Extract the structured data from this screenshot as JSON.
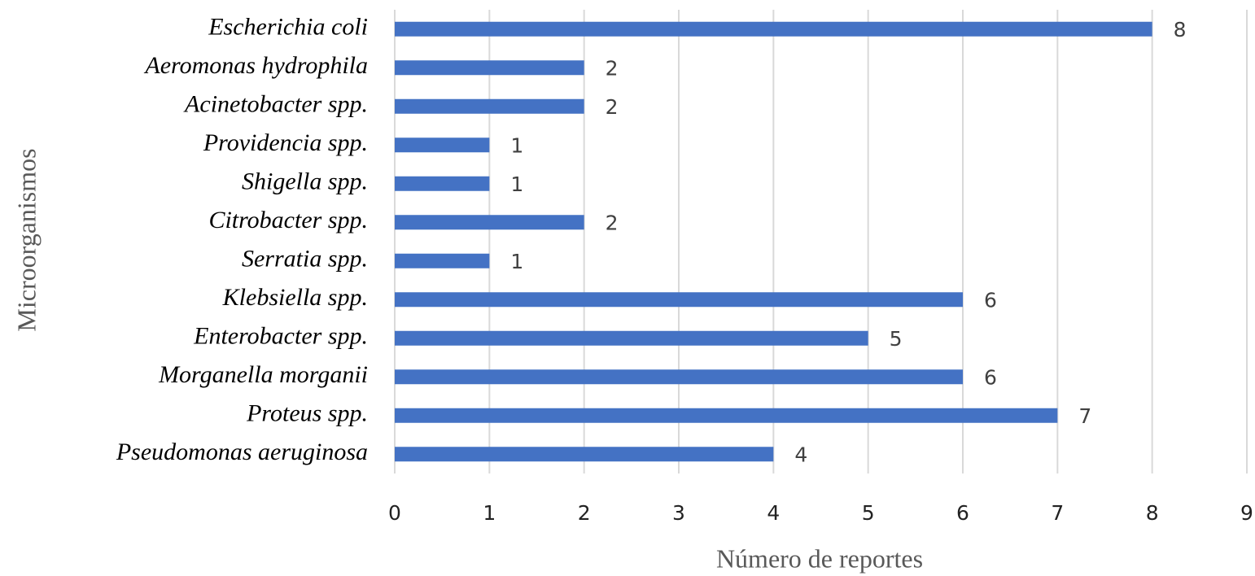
{
  "chart_data": {
    "type": "hbar",
    "xlabel": "Número de reportes",
    "ylabel": "Microorganismos",
    "categories": [
      "Escherichia coli",
      "Aeromonas hydrophila",
      "Acinetobacter spp.",
      "Providencia spp.",
      "Shigella spp.",
      "Citrobacter spp.",
      "Serratia spp.",
      "Klebsiella spp.",
      "Enterobacter spp.",
      "Morganella morganii",
      "Proteus spp.",
      "Pseudomonas aeruginosa"
    ],
    "values": [
      8,
      2,
      2,
      1,
      1,
      2,
      1,
      6,
      5,
      6,
      7,
      4
    ],
    "color": "#4472c4",
    "xlim": [
      0,
      9
    ],
    "xticks": [
      0,
      1,
      2,
      3,
      4,
      5,
      6,
      7,
      8,
      9
    ],
    "grid": true
  }
}
